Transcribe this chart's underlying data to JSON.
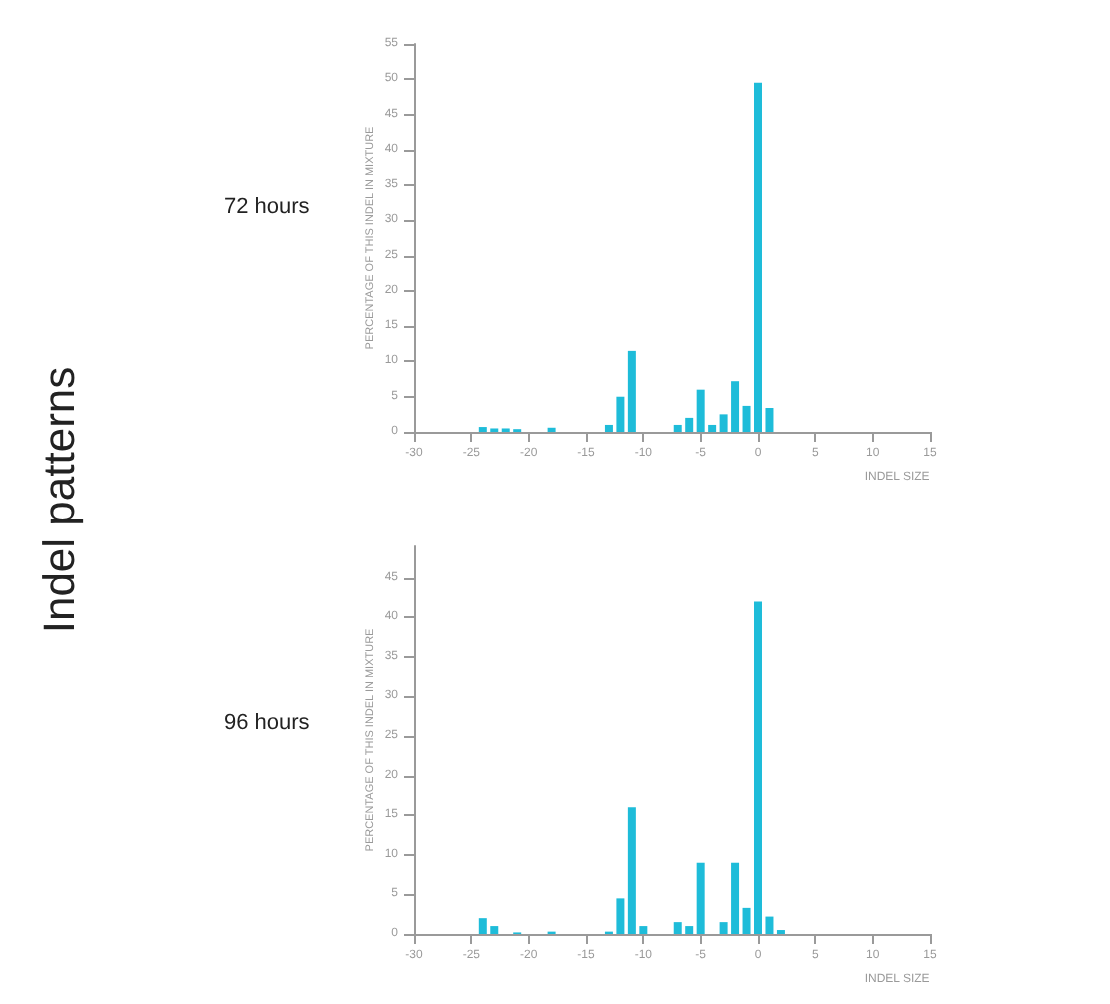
{
  "chart_data": [
    {
      "type": "bar",
      "title": "72 hours",
      "annotations": [
        "Indel patterns"
      ],
      "xlabel": "INDEL SIZE",
      "ylabel": "PERCENTAGE OF THIS INDEL IN MIXTURE",
      "x": [
        -24,
        -23,
        -22,
        -21,
        -18,
        -13,
        -12,
        -11,
        -7,
        -6,
        -5,
        -4,
        -3,
        -2,
        -1,
        0,
        1
      ],
      "values": [
        0.7,
        0.5,
        0.5,
        0.4,
        0.6,
        1,
        5,
        11.5,
        1,
        2,
        6,
        1,
        2.5,
        7.2,
        3.7,
        49.5,
        3.4
      ],
      "color": "#1ebcd9",
      "xlim": [
        -30,
        15
      ],
      "xticks": [
        -30,
        -25,
        -20,
        -15,
        -10,
        -5,
        0,
        5,
        10,
        15
      ],
      "ylim": [
        0,
        55
      ],
      "yticks": [
        0,
        5,
        10,
        15,
        20,
        25,
        30,
        35,
        40,
        45,
        50,
        55
      ],
      "grid": false
    },
    {
      "type": "bar",
      "title": "96 hours",
      "xlabel": "INDEL SIZE",
      "ylabel": "PERCENTAGE OF THIS INDEL IN MIXTURE",
      "x": [
        -24,
        -23,
        -21,
        -18,
        -13,
        -12,
        -11,
        -10,
        -7,
        -6,
        -5,
        -3,
        -2,
        -1,
        0,
        1,
        2
      ],
      "values": [
        2,
        1,
        0.2,
        0.3,
        0.3,
        4.5,
        16,
        1,
        1.5,
        1,
        9,
        1.5,
        9,
        3.3,
        42,
        2.2,
        0.5
      ],
      "color": "#1ebcd9",
      "xlim": [
        -30,
        15
      ],
      "xticks": [
        -30,
        -25,
        -20,
        -15,
        -10,
        -5,
        0,
        5,
        10,
        15
      ],
      "ylim": [
        0,
        49
      ],
      "yticks": [
        0,
        5,
        10,
        15,
        20,
        25,
        30,
        35,
        40,
        45
      ],
      "grid": false
    }
  ]
}
